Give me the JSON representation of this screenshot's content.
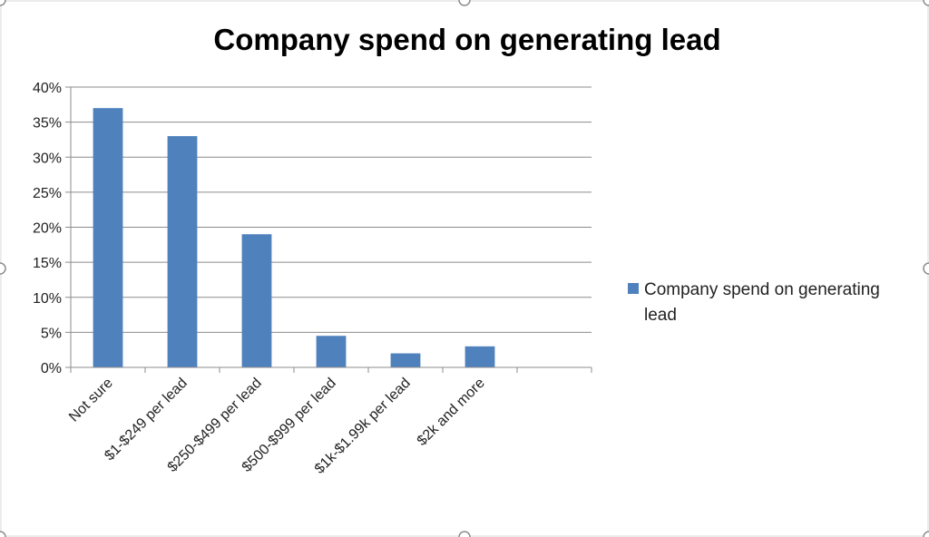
{
  "chart_data": {
    "type": "bar",
    "title": "Company spend on generating lead",
    "xlabel": "",
    "ylabel": "",
    "categories": [
      "Not sure",
      "$1-$249 per lead",
      "$250-$499 per lead",
      "$500-$999 per lead",
      "$1k-$1.99k per lead",
      "$2k and more",
      ""
    ],
    "series": [
      {
        "name": "Company spend on generating lead",
        "values": [
          37,
          33,
          19,
          4.5,
          2,
          3,
          null
        ],
        "color": "#4f81bd"
      }
    ],
    "y_ticks": [
      "0%",
      "5%",
      "10%",
      "15%",
      "20%",
      "25%",
      "30%",
      "35%",
      "40%"
    ],
    "ylim": [
      0,
      40
    ],
    "grid": true,
    "legend": {
      "position": "right",
      "lines": [
        "Company spend on generating",
        "lead"
      ]
    }
  }
}
